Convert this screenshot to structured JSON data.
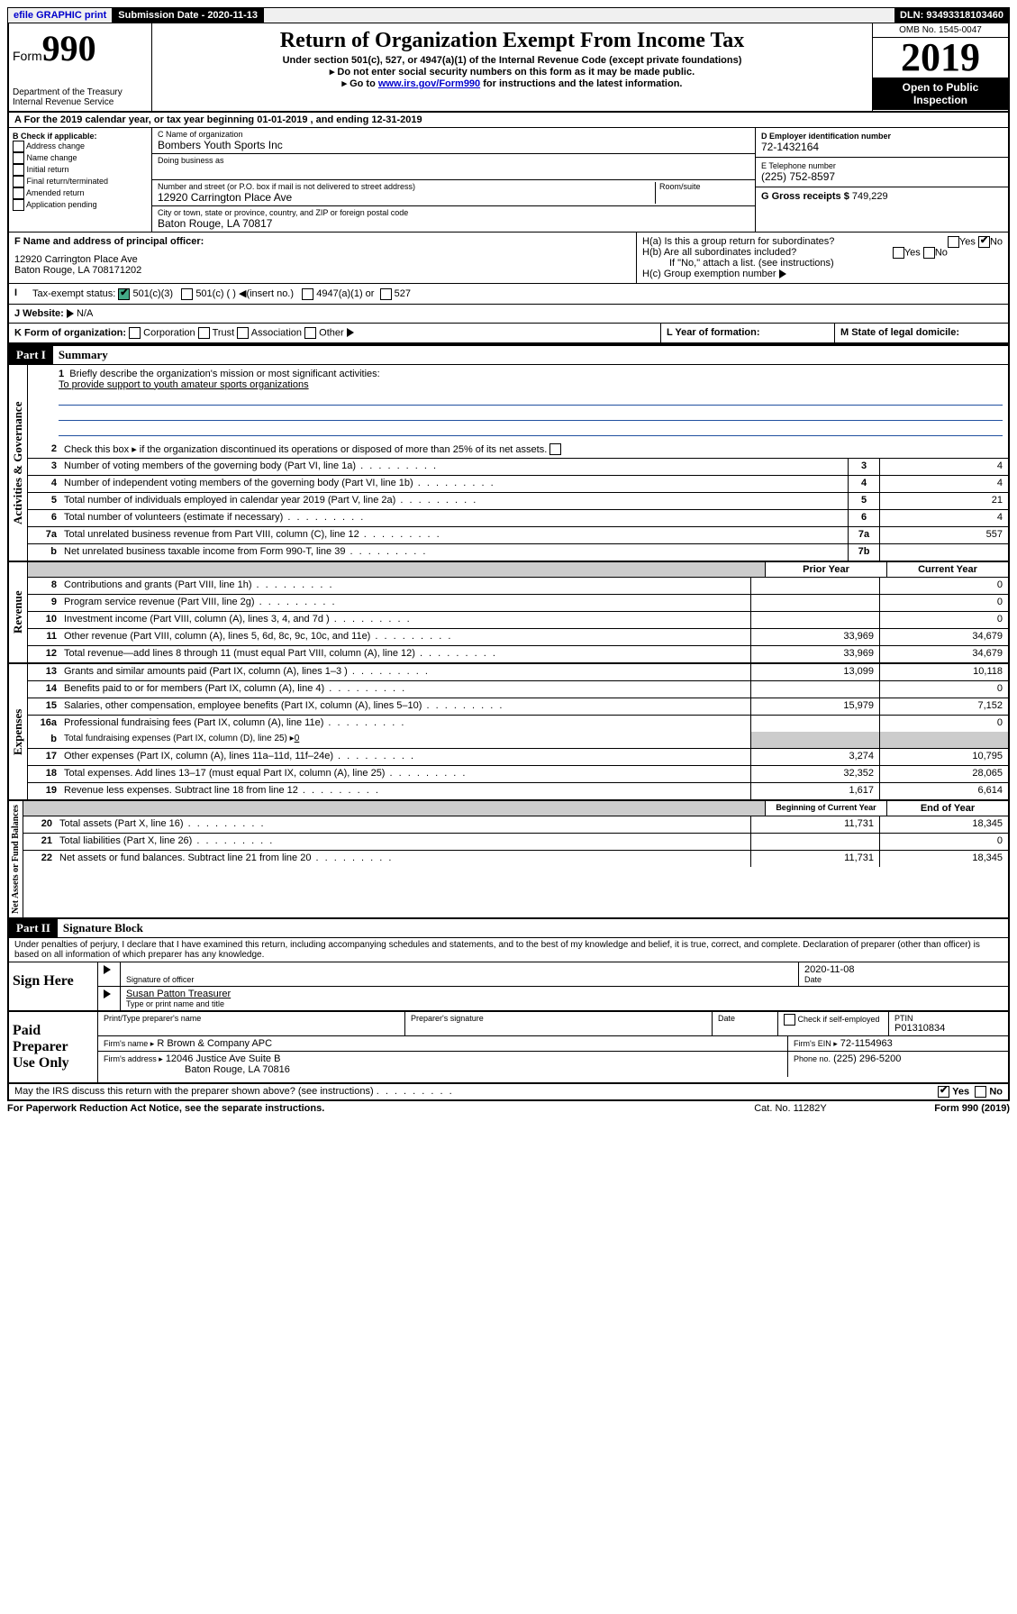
{
  "topbar": {
    "efile": "efile GRAPHIC print",
    "sub_label": "Submission Date - 2020-11-13",
    "dln": "DLN: 93493318103460"
  },
  "header": {
    "form_label": "Form",
    "form_num": "990",
    "dept": "Department of the Treasury",
    "irs": "Internal Revenue Service",
    "title": "Return of Organization Exempt From Income Tax",
    "subtitle": "Under section 501(c), 527, or 4947(a)(1) of the Internal Revenue Code (except private foundations)",
    "note1": "Do not enter social security numbers on this form as it may be made public.",
    "note2_pre": "Go to ",
    "note2_link": "www.irs.gov/Form990",
    "note2_post": " for instructions and the latest information.",
    "omb": "OMB No. 1545-0047",
    "year": "2019",
    "open": "Open to Public Inspection"
  },
  "section_a": "For the 2019 calendar year, or tax year beginning 01-01-2019    , and ending 12-31-2019",
  "box_b": {
    "title": "B Check if applicable:",
    "opts": [
      "Address change",
      "Name change",
      "Initial return",
      "Final return/terminated",
      "Amended return",
      "Application pending"
    ]
  },
  "box_c": {
    "label": "C Name of organization",
    "name": "Bombers Youth Sports Inc",
    "dba_label": "Doing business as",
    "addr_label": "Number and street (or P.O. box if mail is not delivered to street address)",
    "room_label": "Room/suite",
    "addr": "12920 Carrington Place Ave",
    "city_label": "City or town, state or province, country, and ZIP or foreign postal code",
    "city": "Baton Rouge, LA  70817"
  },
  "box_d": {
    "label": "D Employer identification number",
    "ein": "72-1432164"
  },
  "box_e": {
    "label": "E Telephone number",
    "phone": "(225) 752-8597"
  },
  "box_g": {
    "label": "G Gross receipts $",
    "amount": "749,229"
  },
  "box_f": {
    "label": "F Name and address of principal officer:",
    "addr1": "12920 Carrington Place Ave",
    "addr2": "Baton Rouge, LA  708171202"
  },
  "box_h": {
    "ha": "H(a)  Is this a group return for subordinates?",
    "hb": "H(b)  Are all subordinates included?",
    "note": "If \"No,\" attach a list. (see instructions)",
    "hc": "H(c)  Group exemption number"
  },
  "box_i": {
    "label": "Tax-exempt status:",
    "o1": "501(c)(3)",
    "o2": "501(c) (  )",
    "o2b": "(insert no.)",
    "o3": "4947(a)(1) or",
    "o4": "527"
  },
  "box_j": {
    "label": "J   Website:",
    "val": "N/A"
  },
  "box_k": {
    "label": "K Form of organization:",
    "o1": "Corporation",
    "o2": "Trust",
    "o3": "Association",
    "o4": "Other"
  },
  "box_l": "L Year of formation:",
  "box_m": "M State of legal domicile:",
  "part1": {
    "header": "Part I",
    "title": "Summary",
    "q1": "Briefly describe the organization's mission or most significant activities:",
    "mission": "To provide support to youth amateur sports organizations",
    "q2": "Check this box ▸    if the organization discontinued its operations or disposed of more than 25% of its net assets.",
    "rows_top": [
      {
        "n": "3",
        "d": "Number of voting members of the governing body (Part VI, line 1a)",
        "box": "3",
        "v": "4"
      },
      {
        "n": "4",
        "d": "Number of independent voting members of the governing body (Part VI, line 1b)",
        "box": "4",
        "v": "4"
      },
      {
        "n": "5",
        "d": "Total number of individuals employed in calendar year 2019 (Part V, line 2a)",
        "box": "5",
        "v": "21"
      },
      {
        "n": "6",
        "d": "Total number of volunteers (estimate if necessary)",
        "box": "6",
        "v": "4"
      },
      {
        "n": "7a",
        "d": "Total unrelated business revenue from Part VIII, column (C), line 12",
        "box": "7a",
        "v": "557"
      },
      {
        "n": "b",
        "d": "Net unrelated business taxable income from Form 990-T, line 39",
        "box": "7b",
        "v": ""
      }
    ],
    "col_prior": "Prior Year",
    "col_current": "Current Year",
    "revenue_label": "Revenue",
    "revenue": [
      {
        "n": "8",
        "d": "Contributions and grants (Part VIII, line 1h)",
        "p": "",
        "c": "0"
      },
      {
        "n": "9",
        "d": "Program service revenue (Part VIII, line 2g)",
        "p": "",
        "c": "0"
      },
      {
        "n": "10",
        "d": "Investment income (Part VIII, column (A), lines 3, 4, and 7d )",
        "p": "",
        "c": "0"
      },
      {
        "n": "11",
        "d": "Other revenue (Part VIII, column (A), lines 5, 6d, 8c, 9c, 10c, and 11e)",
        "p": "33,969",
        "c": "34,679"
      },
      {
        "n": "12",
        "d": "Total revenue—add lines 8 through 11 (must equal Part VIII, column (A), line 12)",
        "p": "33,969",
        "c": "34,679"
      }
    ],
    "expenses_label": "Expenses",
    "expenses": [
      {
        "n": "13",
        "d": "Grants and similar amounts paid (Part IX, column (A), lines 1–3 )",
        "p": "13,099",
        "c": "10,118"
      },
      {
        "n": "14",
        "d": "Benefits paid to or for members (Part IX, column (A), line 4)",
        "p": "",
        "c": "0"
      },
      {
        "n": "15",
        "d": "Salaries, other compensation, employee benefits (Part IX, column (A), lines 5–10)",
        "p": "15,979",
        "c": "7,152"
      },
      {
        "n": "16a",
        "d": "Professional fundraising fees (Part IX, column (A), line 11e)",
        "p": "",
        "c": "0"
      }
    ],
    "line_b": "Total fundraising expenses (Part IX, column (D), line 25) ▸",
    "line_b_val": "0",
    "expenses2": [
      {
        "n": "17",
        "d": "Other expenses (Part IX, column (A), lines 11a–11d, 11f–24e)",
        "p": "3,274",
        "c": "10,795"
      },
      {
        "n": "18",
        "d": "Total expenses. Add lines 13–17 (must equal Part IX, column (A), line 25)",
        "p": "32,352",
        "c": "28,065"
      },
      {
        "n": "19",
        "d": "Revenue less expenses. Subtract line 18 from line 12",
        "p": "1,617",
        "c": "6,614"
      }
    ],
    "net_label": "Net Assets or Fund Balances",
    "col_begin": "Beginning of Current Year",
    "col_end": "End of Year",
    "net": [
      {
        "n": "20",
        "d": "Total assets (Part X, line 16)",
        "p": "11,731",
        "c": "18,345"
      },
      {
        "n": "21",
        "d": "Total liabilities (Part X, line 26)",
        "p": "",
        "c": "0"
      },
      {
        "n": "22",
        "d": "Net assets or fund balances. Subtract line 21 from line 20",
        "p": "11,731",
        "c": "18,345"
      }
    ],
    "gov_label": "Activities & Governance"
  },
  "part2": {
    "header": "Part II",
    "title": "Signature Block",
    "perjury": "Under penalties of perjury, I declare that I have examined this return, including accompanying schedules and statements, and to the best of my knowledge and belief, it is true, correct, and complete. Declaration of preparer (other than officer) is based on all information of which preparer has any knowledge."
  },
  "sign": {
    "left": "Sign Here",
    "sig_label": "Signature of officer",
    "date": "2020-11-08",
    "date_label": "Date",
    "name": "Susan Patton  Treasurer",
    "name_label": "Type or print name and title"
  },
  "preparer": {
    "left": "Paid Preparer Use Only",
    "h1": "Print/Type preparer's name",
    "h2": "Preparer's signature",
    "h3": "Date",
    "h4": "Check         if self-employed",
    "h5": "PTIN",
    "ptin": "P01310834",
    "firm_label": "Firm's name    ▸",
    "firm": "R Brown & Company APC",
    "ein_label": "Firm's EIN ▸",
    "ein": "72-1154963",
    "addr_label": "Firm's address ▸",
    "addr1": "12046 Justice Ave Suite B",
    "addr2": "Baton Rouge, LA  70816",
    "phone_label": "Phone no.",
    "phone": "(225) 296-5200"
  },
  "discuss": "May the IRS discuss this return with the preparer shown above? (see instructions)",
  "footer": {
    "left": "For Paperwork Reduction Act Notice, see the separate instructions.",
    "mid": "Cat. No. 11282Y",
    "right": "Form 990 (2019)"
  },
  "yes": "Yes",
  "no": "No"
}
